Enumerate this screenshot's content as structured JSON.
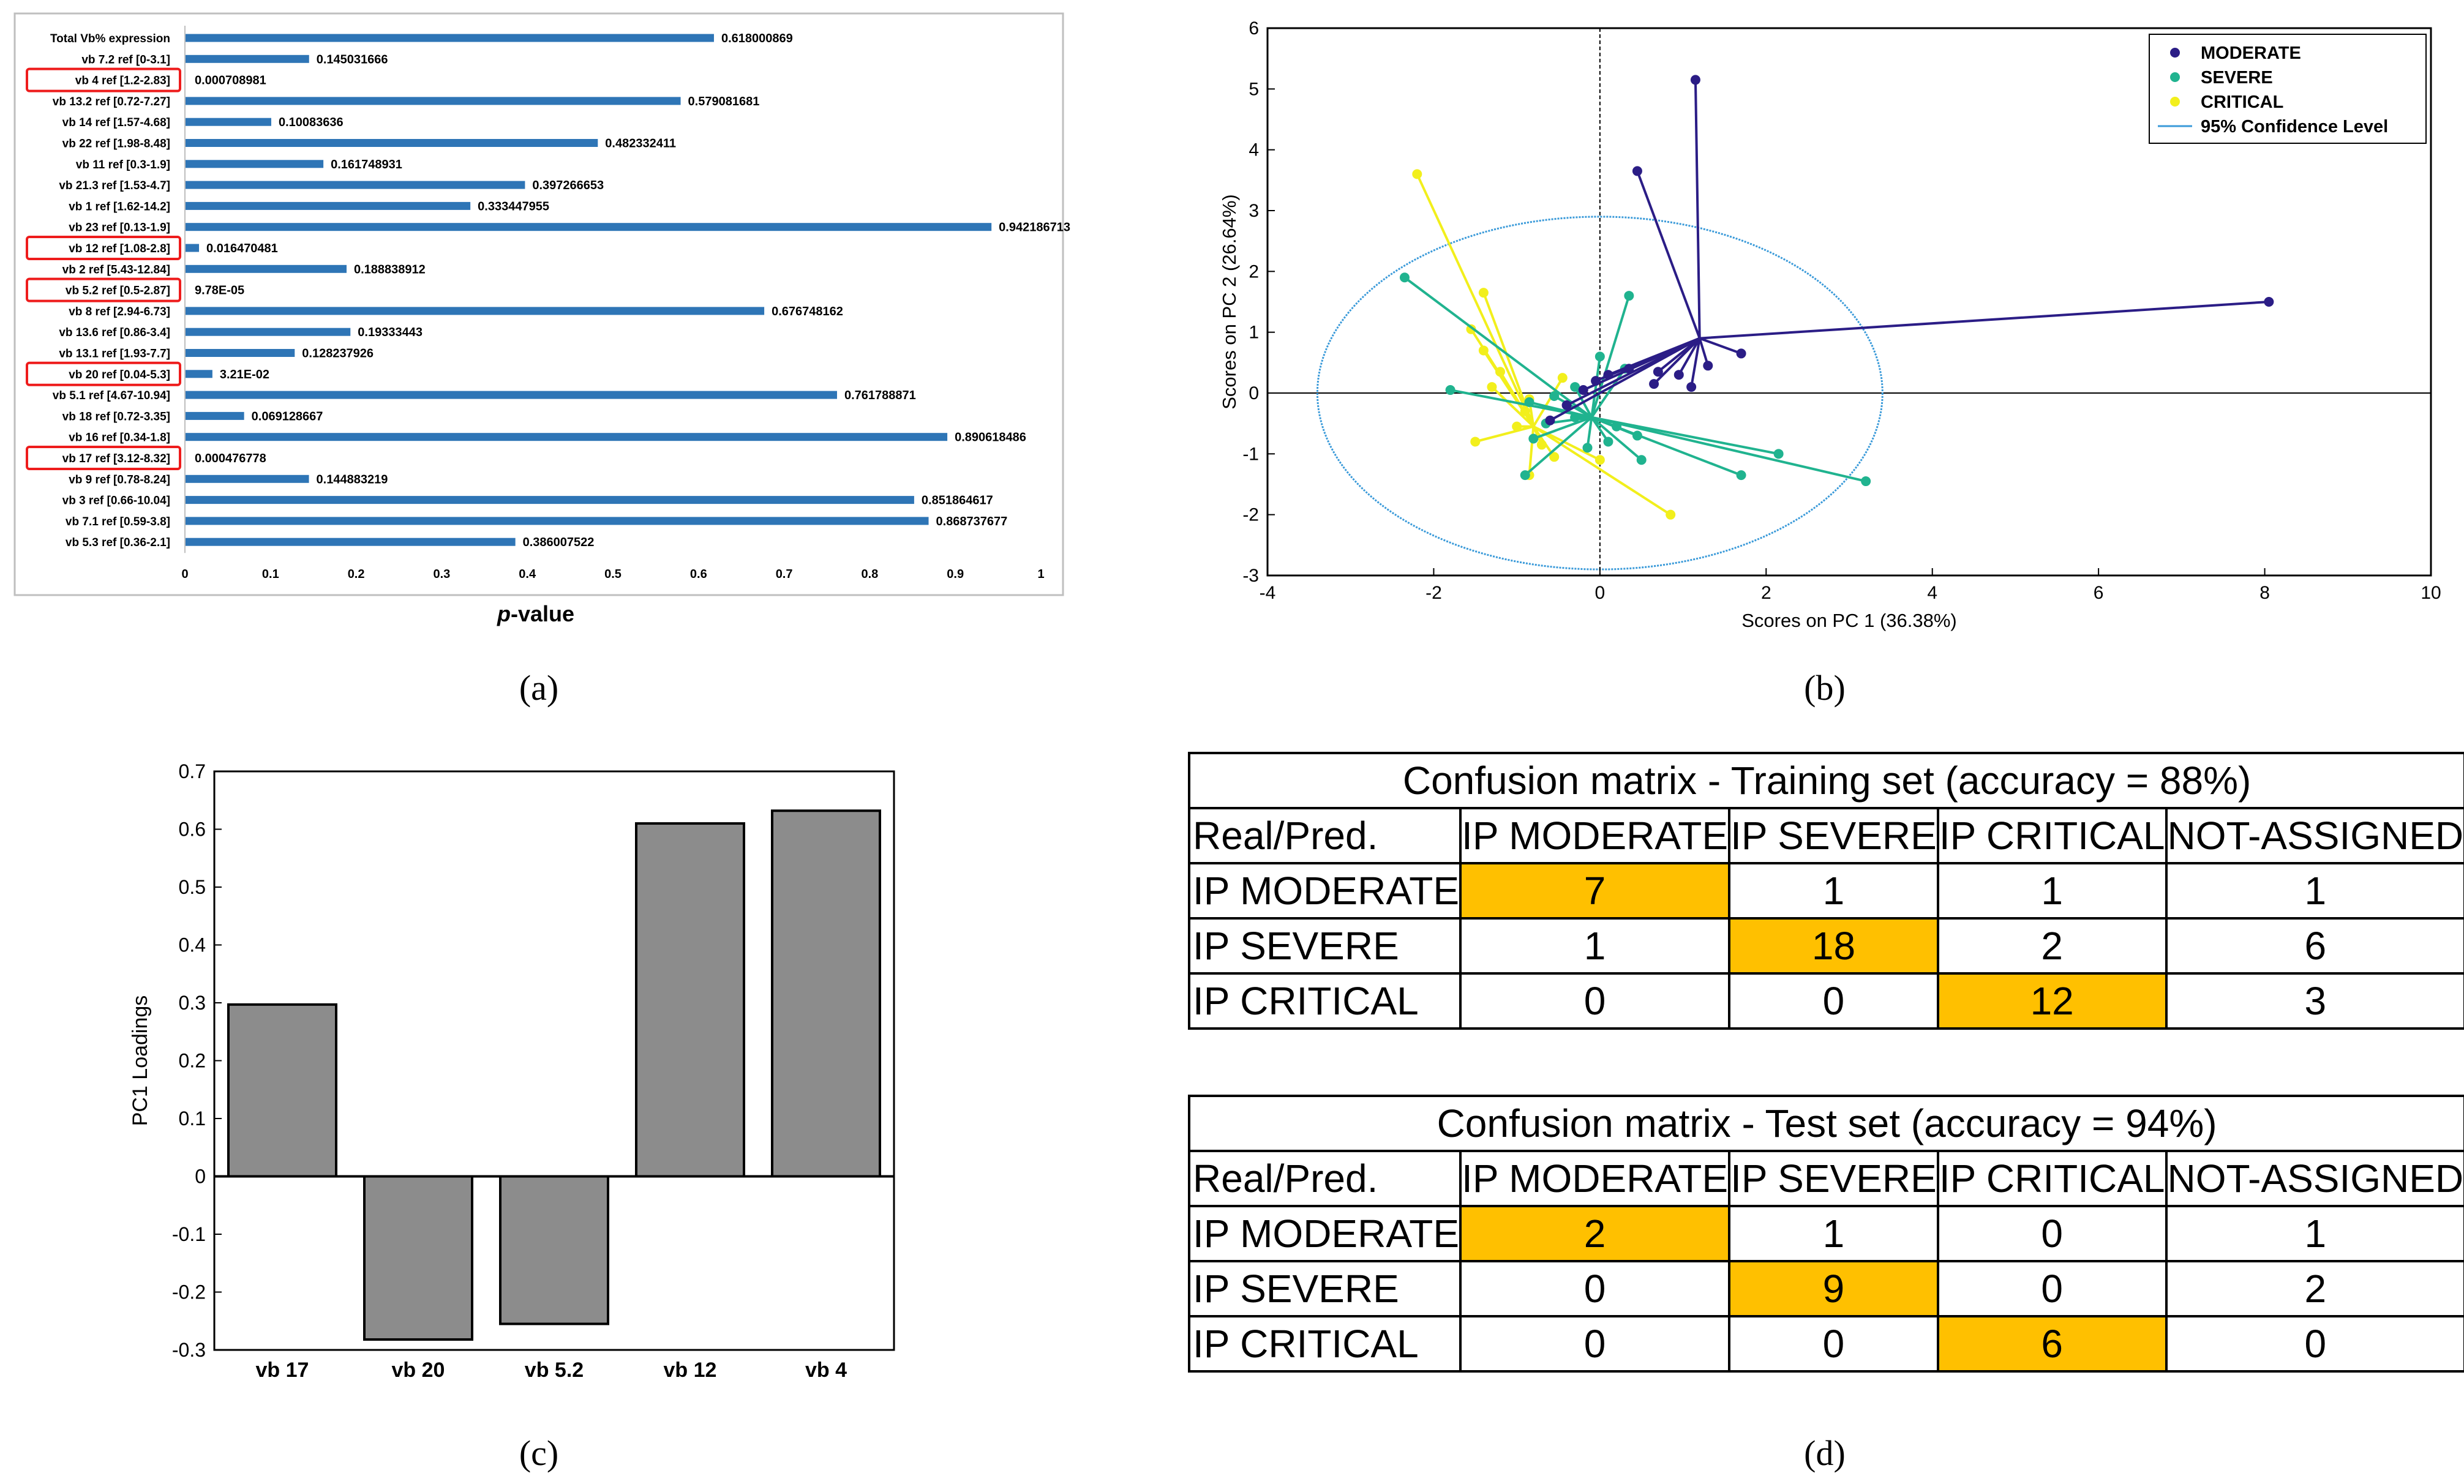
{
  "colors": {
    "bar_blue": "#2e75b6",
    "pca_moderate": "#2b1d86",
    "pca_severe": "#20b38f",
    "pca_critical": "#f2ef1c",
    "confidence": "#3a9ad9",
    "loading_bar": "#8c8c8c",
    "highlight": "#ffc000",
    "red_box": "#ee1c1c"
  },
  "panel_labels": {
    "a": "(a)",
    "b": "(b)",
    "c": "(c)",
    "d": "(d)"
  },
  "chart_data": [
    {
      "id": "a",
      "type": "bar",
      "orientation": "horizontal",
      "xlabel": "p-value",
      "xlabel_italic": "p",
      "xlabel_rest": "-value",
      "xlim": [
        0,
        1
      ],
      "xticks": [
        "0",
        "0.1",
        "0.2",
        "0.3",
        "0.4",
        "0.5",
        "0.6",
        "0.7",
        "0.8",
        "0.9",
        "1"
      ],
      "highlighted": [
        "vb 4  ref [1.2-2.83]",
        "vb 12  ref [1.08-2.8]",
        "vb 5.2  ref [0.5-2.87]",
        "vb 20 ref [0.04-5.3]",
        "vb 17 ref [3.12-8.32]"
      ],
      "categories": [
        "Total Vb% expression",
        "vb 7.2  ref [0-3.1]",
        "vb 4  ref [1.2-2.83]",
        "vb 13.2  ref [0.72-7.27]",
        "vb 14  ref [1.57-4.68]",
        "vb 22  ref [1.98-8.48]",
        "vb 11  ref [0.3-1.9]",
        "vb 21.3  ref [1.53-4.7]",
        "vb 1  ref [1.62-14.2]",
        "vb 23  ref [0.13-1.9]",
        "vb 12  ref [1.08-2.8]",
        "vb 2  ref [5.43-12.84]",
        "vb 5.2  ref [0.5-2.87]",
        "vb 8  ref [2.94-6.73]",
        "vb 13.6  ref [0.86-3.4]",
        "vb 13.1  ref [1.93-7.7]",
        "vb 20 ref [0.04-5.3]",
        "vb 5.1 ref [4.67-10.94]",
        "vb 18 ref [0.72-3.35]",
        "vb 16 ref [0.34-1.8]",
        "vb 17 ref [3.12-8.32]",
        "vb 9 ref [0.78-8.24]",
        "vb 3 ref [0.66-10.04]",
        "vb 7.1 ref [0.59-3.8]",
        "vb 5.3 ref [0.36-2.1]"
      ],
      "values": [
        0.618000869,
        0.145031666,
        0.000708981,
        0.579081681,
        0.10083636,
        0.482332411,
        0.161748931,
        0.397266653,
        0.333447955,
        0.942186713,
        0.016470481,
        0.188838912,
        9.78e-05,
        0.676748162,
        0.19333443,
        0.128237926,
        0.0321,
        0.761788871,
        0.069128667,
        0.890618486,
        0.000476778,
        0.144883219,
        0.851864617,
        0.868737677,
        0.386007522
      ],
      "value_labels": [
        "0.618000869",
        "0.145031666",
        "0.000708981",
        "0.579081681",
        "0.10083636",
        "0.482332411",
        "0.161748931",
        "0.397266653",
        "0.333447955",
        "0.942186713",
        "0.016470481",
        "0.188838912",
        "9.78E-05",
        "0.676748162",
        "0.19333443",
        "0.128237926",
        "3.21E-02",
        "0.761788871",
        "0.069128667",
        "0.890618486",
        "0.000476778",
        "0.144883219",
        "0.851864617",
        "0.868737677",
        "0.386007522"
      ]
    },
    {
      "id": "b",
      "type": "scatter",
      "xlabel": "Scores on PC 1 (36.38%)",
      "ylabel": "Scores on PC 2 (26.64%)",
      "xlim": [
        -4,
        10
      ],
      "ylim": [
        -3,
        6
      ],
      "xticks": [
        -4,
        -2,
        0,
        2,
        4,
        6,
        8,
        10
      ],
      "yticks": [
        -3,
        -2,
        -1,
        0,
        1,
        2,
        3,
        4,
        5,
        6
      ],
      "legend": [
        "MODERATE",
        "SEVERE",
        "CRITICAL",
        "95% Confidence Level"
      ],
      "legend_position": "top-right",
      "confidence_ellipse": {
        "center": [
          0,
          0
        ],
        "rx": 3.4,
        "ry": 2.9
      },
      "series": [
        {
          "name": "MODERATE",
          "centroid": [
            1.2,
            0.9
          ],
          "points": [
            [
              8.05,
              1.5
            ],
            [
              1.15,
              5.15
            ],
            [
              0.45,
              3.65
            ],
            [
              1.7,
              0.65
            ],
            [
              1.3,
              0.45
            ],
            [
              0.7,
              0.35
            ],
            [
              0.95,
              0.3
            ],
            [
              0.65,
              0.15
            ],
            [
              1.1,
              0.1
            ],
            [
              0.35,
              0.4
            ],
            [
              0.1,
              0.3
            ],
            [
              -0.05,
              0.2
            ],
            [
              -0.2,
              0.05
            ],
            [
              -0.4,
              -0.2
            ],
            [
              -0.6,
              -0.45
            ]
          ]
        },
        {
          "name": "SEVERE",
          "centroid": [
            -0.1,
            -0.4
          ],
          "points": [
            [
              -2.35,
              1.9
            ],
            [
              -1.8,
              0.05
            ],
            [
              0.35,
              1.6
            ],
            [
              0.0,
              0.6
            ],
            [
              0.3,
              0.4
            ],
            [
              -0.3,
              0.1
            ],
            [
              -0.55,
              -0.05
            ],
            [
              -0.85,
              -0.15
            ],
            [
              3.2,
              -1.45
            ],
            [
              2.15,
              -1.0
            ],
            [
              1.7,
              -1.35
            ],
            [
              0.5,
              -1.1
            ],
            [
              0.1,
              -0.8
            ],
            [
              -0.8,
              -0.75
            ],
            [
              -0.9,
              -1.35
            ],
            [
              -0.15,
              -0.9
            ],
            [
              0.45,
              -0.7
            ],
            [
              -0.3,
              -0.4
            ],
            [
              0.2,
              -0.55
            ],
            [
              -0.65,
              -0.5
            ]
          ]
        },
        {
          "name": "CRITICAL",
          "centroid": [
            -0.8,
            -0.55
          ],
          "points": [
            [
              -2.2,
              3.6
            ],
            [
              -1.4,
              1.65
            ],
            [
              -1.55,
              1.05
            ],
            [
              -1.4,
              0.7
            ],
            [
              -1.2,
              0.35
            ],
            [
              -0.45,
              0.25
            ],
            [
              -0.85,
              -0.1
            ],
            [
              -1.5,
              -0.8
            ],
            [
              -1.0,
              -0.55
            ],
            [
              -0.7,
              -0.85
            ],
            [
              -0.55,
              -1.05
            ],
            [
              -0.85,
              -1.35
            ],
            [
              0.85,
              -2.0
            ],
            [
              0.0,
              -1.1
            ],
            [
              -0.9,
              -0.3
            ],
            [
              -1.3,
              0.1
            ]
          ]
        }
      ]
    },
    {
      "id": "c",
      "type": "bar",
      "ylabel": "PC1 Loadings",
      "ylim": [
        -0.3,
        0.7
      ],
      "yticks": [
        "-0.3",
        "-0.2",
        "-0.1",
        "0",
        "0.1",
        "0.2",
        "0.3",
        "0.4",
        "0.5",
        "0.6",
        "0.7"
      ],
      "categories": [
        "vb 17",
        "vb 20",
        "vb 5.2",
        "vb 12",
        "vb 4"
      ],
      "values": [
        0.297,
        -0.282,
        -0.255,
        0.61,
        0.632
      ]
    },
    {
      "id": "d",
      "type": "table",
      "tables": [
        {
          "title": "Confusion matrix - Training set (accuracy = 88%)",
          "header": [
            "Real/Pred.",
            "IP MODERATE",
            "IP SEVERE",
            "IP CRITICAL",
            "NOT-ASSIGNED"
          ],
          "rows": [
            [
              "IP MODERATE",
              "7",
              "1",
              "1",
              "1"
            ],
            [
              "IP SEVERE",
              "1",
              "18",
              "2",
              "6"
            ],
            [
              "IP CRITICAL",
              "0",
              "0",
              "12",
              "3"
            ]
          ]
        },
        {
          "title": "Confusion matrix - Test set (accuracy = 94%)",
          "header": [
            "Real/Pred.",
            "IP MODERATE",
            "IP SEVERE",
            "IP CRITICAL",
            "NOT-ASSIGNED"
          ],
          "rows": [
            [
              "IP MODERATE",
              "2",
              "1",
              "0",
              "1"
            ],
            [
              "IP SEVERE",
              "0",
              "9",
              "0",
              "2"
            ],
            [
              "IP CRITICAL",
              "0",
              "0",
              "6",
              "0"
            ]
          ]
        }
      ]
    }
  ]
}
